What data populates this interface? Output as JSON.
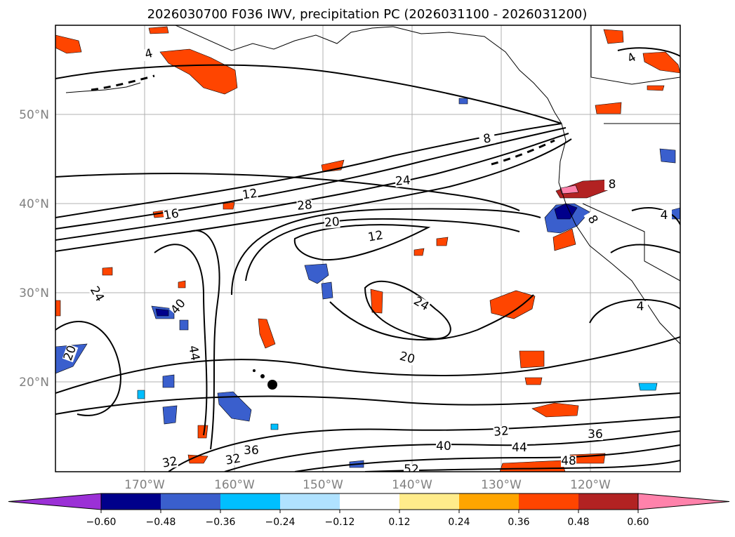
{
  "title": "2026030700 F036 IWV, precipitation PC (2026031100 - 2026031200)",
  "map": {
    "lon_labels": [
      "170°W",
      "160°W",
      "150°W",
      "140°W",
      "130°W",
      "120°W"
    ],
    "lat_labels": [
      "50°N",
      "40°N",
      "30°N",
      "20°N"
    ],
    "contour_labels": [
      "4",
      "8",
      "12",
      "16",
      "28",
      "24",
      "20",
      "12",
      "24",
      "20",
      "24",
      "40",
      "44",
      "20",
      "32",
      "32",
      "36",
      "40",
      "44",
      "32",
      "36",
      "48",
      "52",
      "8",
      "8",
      "4",
      "4",
      "4"
    ]
  },
  "colorbar": {
    "ticks": [
      "−0.60",
      "−0.48",
      "−0.36",
      "−0.24",
      "−0.12",
      "0.12",
      "0.24",
      "0.36",
      "0.48",
      "0.60"
    ],
    "colors": [
      "#9b30d6",
      "#00008b",
      "#3a5fcd",
      "#00bfff",
      "#b0e2ff",
      "#ffffff",
      "#ffec8b",
      "#ffa500",
      "#ff4500",
      "#b22222",
      "#ff82ab"
    ]
  }
}
